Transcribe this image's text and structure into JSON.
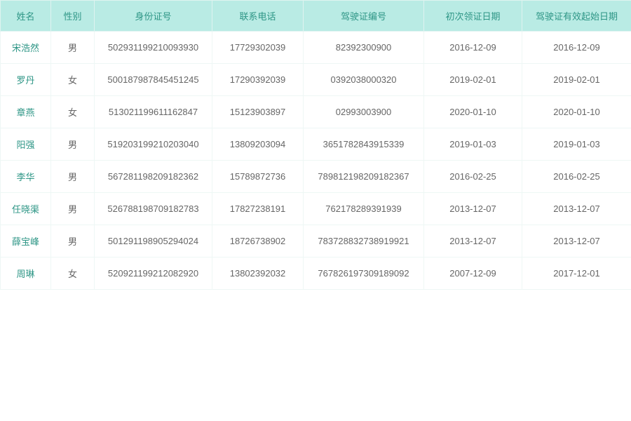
{
  "table": {
    "columns": [
      "姓名",
      "性别",
      "身份证号",
      "联系电话",
      "驾驶证编号",
      "初次领证日期",
      "驾驶证有效起始日期"
    ],
    "rows": [
      {
        "name": "宋浩然",
        "gender": "男",
        "id": "502931199210093930",
        "phone": "17729302039",
        "license": "82392300900",
        "firstDate": "2016-12-09",
        "validDate": "2016-12-09"
      },
      {
        "name": "罗丹",
        "gender": "女",
        "id": "500187987845451245",
        "phone": "17290392039",
        "license": "0392038000320",
        "firstDate": "2019-02-01",
        "validDate": "2019-02-01"
      },
      {
        "name": "章燕",
        "gender": "女",
        "id": "513021199611162847",
        "phone": "15123903897",
        "license": "02993003900",
        "firstDate": "2020-01-10",
        "validDate": "2020-01-10"
      },
      {
        "name": "阳强",
        "gender": "男",
        "id": "519203199210203040",
        "phone": "13809203094",
        "license": "3651782843915339",
        "firstDate": "2019-01-03",
        "validDate": "2019-01-03"
      },
      {
        "name": "李华",
        "gender": "男",
        "id": "567281198209182362",
        "phone": "15789872736",
        "license": "789812198209182367",
        "firstDate": "2016-02-25",
        "validDate": "2016-02-25"
      },
      {
        "name": "任晓渠",
        "gender": "男",
        "id": "526788198709182783",
        "phone": "17827238191",
        "license": "762178289391939",
        "firstDate": "2013-12-07",
        "validDate": "2013-12-07"
      },
      {
        "name": "薛宝峰",
        "gender": "男",
        "id": "501291198905294024",
        "phone": "18726738902",
        "license": "783728832738919921",
        "firstDate": "2013-12-07",
        "validDate": "2013-12-07"
      },
      {
        "name": "周琳",
        "gender": "女",
        "id": "520921199212082920",
        "phone": "13802392032",
        "license": "767826197309189092",
        "firstDate": "2007-12-09",
        "validDate": "2017-12-01"
      }
    ],
    "header_bg_color": "#b9ebe4",
    "header_text_color": "#2e9686",
    "name_text_color": "#2e9686",
    "cell_text_color": "#666666",
    "border_color": "#eef7f5"
  }
}
